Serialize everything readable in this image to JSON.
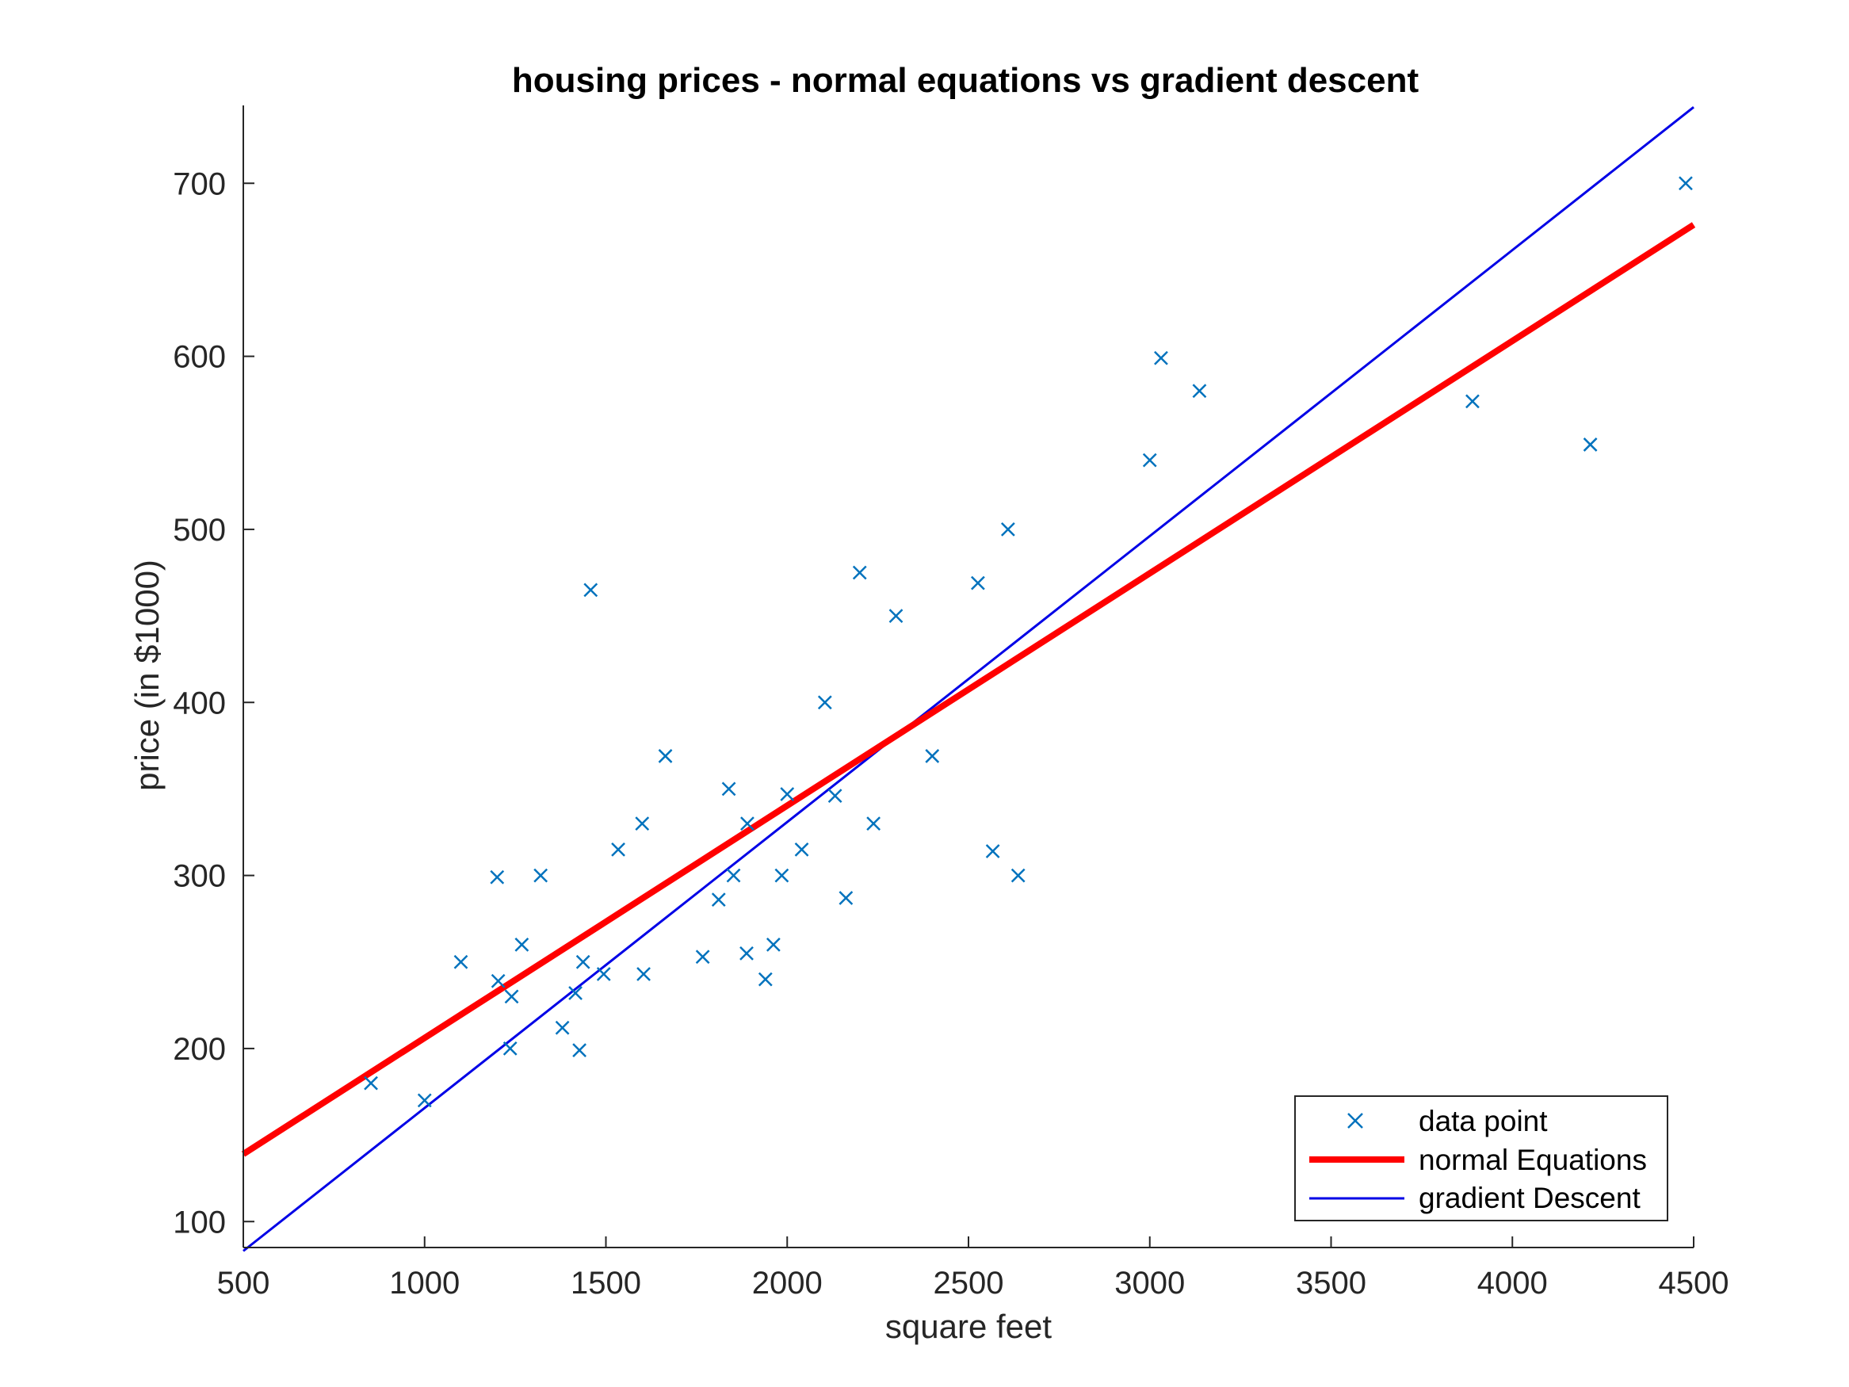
{
  "chart_data": {
    "type": "scatter",
    "title": "housing prices - normal equations vs gradient descent",
    "xlabel": "square feet",
    "ylabel": "price (in $1000)",
    "xlim": [
      500,
      4500
    ],
    "ylim": [
      85,
      745
    ],
    "xticks": [
      500,
      1000,
      1500,
      2000,
      2500,
      3000,
      3500,
      4000,
      4500
    ],
    "yticks": [
      100,
      200,
      300,
      400,
      500,
      600,
      700
    ],
    "grid": false,
    "legend_position": "bottom-right",
    "series": [
      {
        "name": "data point",
        "kind": "scatter",
        "marker": "x",
        "color": "#0072BD",
        "points": [
          [
            852,
            180
          ],
          [
            1000,
            170
          ],
          [
            1100,
            250
          ],
          [
            1200,
            299
          ],
          [
            1203,
            239
          ],
          [
            1236,
            200
          ],
          [
            1240,
            230
          ],
          [
            1268,
            260
          ],
          [
            1320,
            300
          ],
          [
            1380,
            212
          ],
          [
            1416,
            232
          ],
          [
            1427,
            199
          ],
          [
            1437,
            250
          ],
          [
            1458,
            465
          ],
          [
            1494,
            243
          ],
          [
            1534,
            315
          ],
          [
            1600,
            330
          ],
          [
            1604,
            243
          ],
          [
            1664,
            369
          ],
          [
            1767,
            253
          ],
          [
            1811,
            286
          ],
          [
            1839,
            350
          ],
          [
            1852,
            300
          ],
          [
            1888,
            255
          ],
          [
            1890,
            330
          ],
          [
            1940,
            240
          ],
          [
            1962,
            260
          ],
          [
            1985,
            300
          ],
          [
            2000,
            347
          ],
          [
            2040,
            315
          ],
          [
            2104,
            400
          ],
          [
            2132,
            346
          ],
          [
            2162,
            287
          ],
          [
            2200,
            475
          ],
          [
            2238,
            330
          ],
          [
            2300,
            450
          ],
          [
            2400,
            369
          ],
          [
            2526,
            469
          ],
          [
            2567,
            314
          ],
          [
            2609,
            500
          ],
          [
            2637,
            300
          ],
          [
            3000,
            540
          ],
          [
            3031,
            599
          ],
          [
            3137,
            580
          ],
          [
            3890,
            574
          ],
          [
            4215,
            549
          ],
          [
            4478,
            700
          ]
        ]
      },
      {
        "name": "normal Equations",
        "kind": "line",
        "color": "#FF0000",
        "x": [
          500,
          4500
        ],
        "y": [
          139,
          676
        ]
      },
      {
        "name": "gradient Descent",
        "kind": "line",
        "color": "#0000E6",
        "x": [
          500,
          4500
        ],
        "y": [
          83,
          744
        ]
      }
    ]
  }
}
